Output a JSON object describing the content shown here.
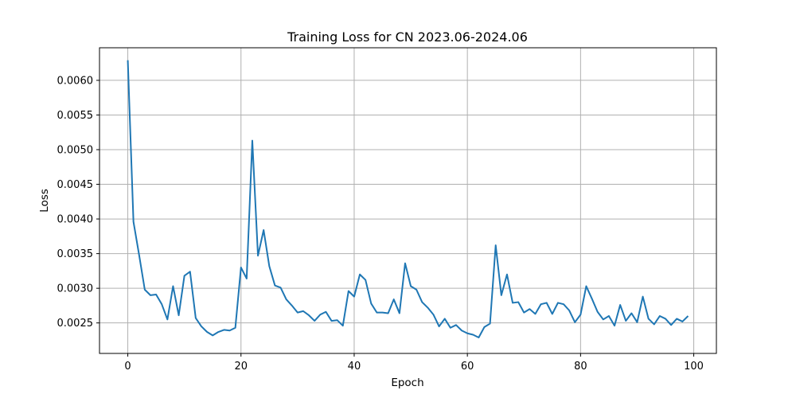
{
  "chart_data": {
    "type": "line",
    "title": "Training Loss for CN 2023.06-2024.06",
    "xlabel": "Epoch",
    "ylabel": "Loss",
    "xlim": [
      -5,
      104
    ],
    "ylim": [
      0.00206,
      0.00647
    ],
    "xticks": [
      0,
      20,
      40,
      60,
      80,
      100
    ],
    "yticks": [
      0.0025,
      0.003,
      0.0035,
      0.004,
      0.0045,
      0.005,
      0.0055,
      0.006
    ],
    "xtick_labels": [
      "0",
      "20",
      "40",
      "60",
      "80",
      "100"
    ],
    "ytick_labels": [
      "0.0025",
      "0.0030",
      "0.0035",
      "0.0040",
      "0.0045",
      "0.0050",
      "0.0055",
      "0.0060"
    ],
    "grid": true,
    "line_color": "#1f77b4",
    "series": [
      {
        "x": [
          0,
          1,
          2,
          3,
          4,
          5,
          6,
          7,
          8,
          9,
          10,
          11,
          12,
          13,
          14,
          15,
          16,
          17,
          18,
          19,
          20,
          21,
          22,
          23,
          24,
          25,
          26,
          27,
          28,
          29,
          30,
          31,
          32,
          33,
          34,
          35,
          36,
          37,
          38,
          39,
          40,
          41,
          42,
          43,
          44,
          45,
          46,
          47,
          48,
          49,
          50,
          51,
          52,
          53,
          54,
          55,
          56,
          57,
          58,
          59,
          60,
          61,
          62,
          63,
          64,
          65,
          66,
          67,
          68,
          69,
          70,
          71,
          72,
          73,
          74,
          75,
          76,
          77,
          78,
          79,
          80,
          81,
          82,
          83,
          84,
          85,
          86,
          87,
          88,
          89,
          90,
          91,
          92,
          93,
          94,
          95,
          96,
          97,
          98,
          99
        ],
        "values": [
          0.00629,
          0.00396,
          0.00348,
          0.00298,
          0.0029,
          0.00291,
          0.00277,
          0.00255,
          0.00303,
          0.00261,
          0.00318,
          0.00324,
          0.00257,
          0.00245,
          0.00237,
          0.00232,
          0.00237,
          0.0024,
          0.00239,
          0.00243,
          0.0033,
          0.00314,
          0.00513,
          0.00347,
          0.00384,
          0.00332,
          0.00304,
          0.00301,
          0.00284,
          0.00275,
          0.00265,
          0.00267,
          0.00261,
          0.00253,
          0.00262,
          0.00266,
          0.00253,
          0.00254,
          0.00246,
          0.00296,
          0.00288,
          0.0032,
          0.00312,
          0.00278,
          0.00265,
          0.00265,
          0.00264,
          0.00284,
          0.00264,
          0.00336,
          0.00303,
          0.00298,
          0.0028,
          0.00272,
          0.00262,
          0.00245,
          0.00256,
          0.00243,
          0.00247,
          0.00239,
          0.00235,
          0.00233,
          0.00229,
          0.00244,
          0.00249,
          0.00362,
          0.0029,
          0.0032,
          0.00279,
          0.0028,
          0.00265,
          0.0027,
          0.00263,
          0.00277,
          0.00279,
          0.00263,
          0.00279,
          0.00277,
          0.00268,
          0.00251,
          0.00262,
          0.00303,
          0.00285,
          0.00266,
          0.00255,
          0.0026,
          0.00246,
          0.00276,
          0.00253,
          0.00264,
          0.00251,
          0.00288,
          0.00256,
          0.00248,
          0.0026,
          0.00256,
          0.00247,
          0.00256,
          0.00252,
          0.0026
        ]
      }
    ]
  }
}
